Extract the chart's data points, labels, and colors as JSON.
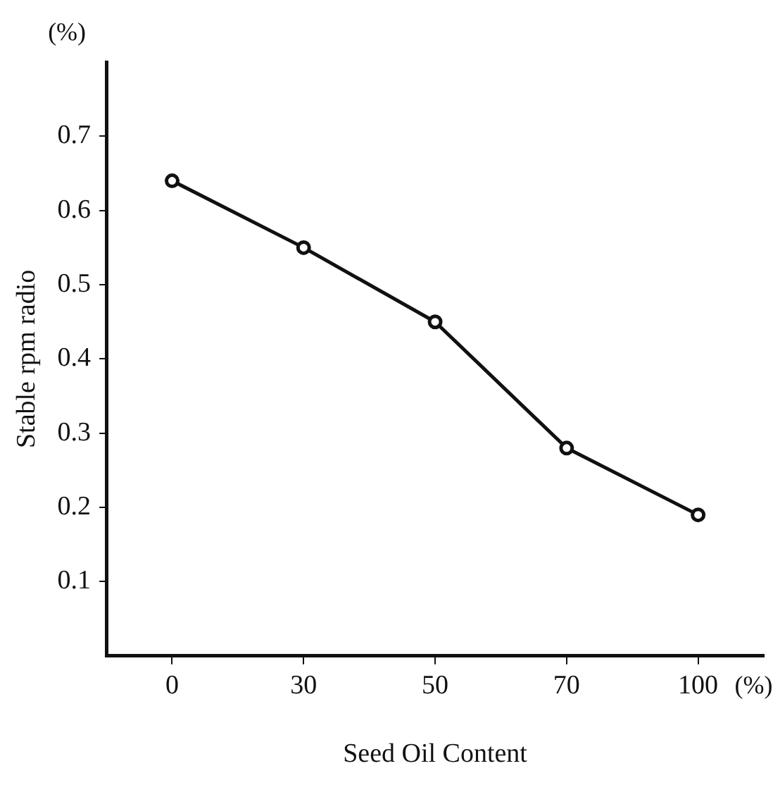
{
  "chart_data": {
    "type": "line",
    "xlabel": "Seed Oil Content",
    "ylabel": "Stable rpm radio",
    "annotations": [
      "(%)",
      "(%)"
    ],
    "categories": [
      "0",
      "30",
      "50",
      "70",
      "100"
    ],
    "series": [
      {
        "color": "#111111",
        "values": [
          0.64,
          0.55,
          0.45,
          0.28,
          0.19
        ]
      }
    ],
    "ylim": [
      0,
      0.8
    ],
    "yticks": [
      0.1,
      0.2,
      0.3,
      0.4,
      0.5,
      0.6,
      0.7
    ],
    "grid": false,
    "legend": false,
    "marker": "circle",
    "line_style": "solid"
  }
}
